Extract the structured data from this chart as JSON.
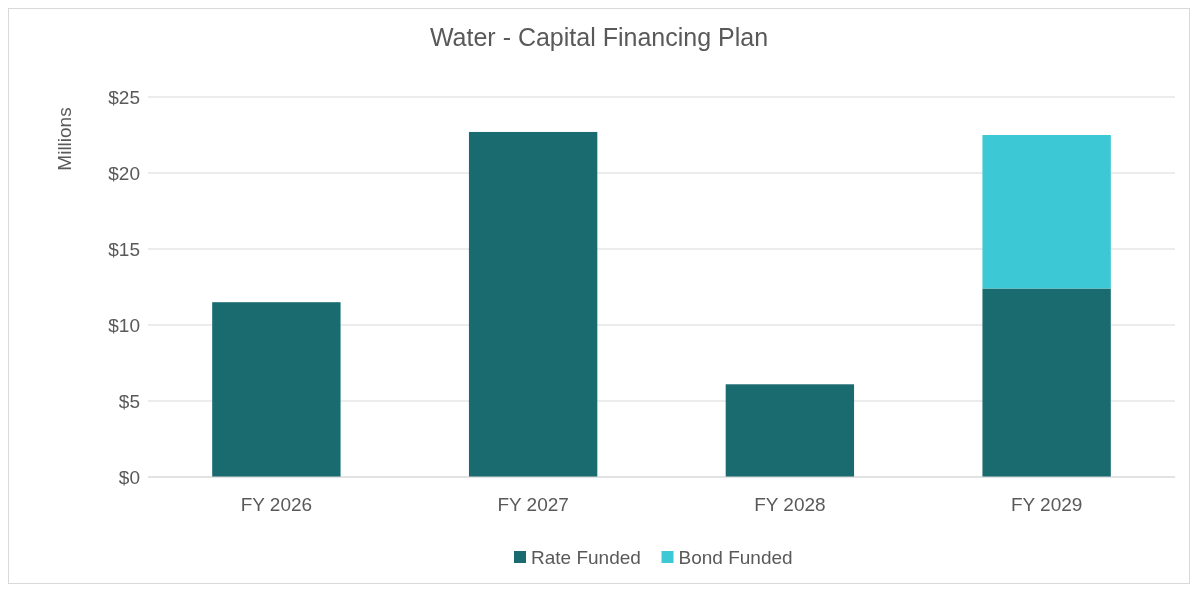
{
  "chart_data": {
    "type": "bar",
    "title": "Water - Capital Financing Plan",
    "ylabel": "Millions",
    "categories": [
      "FY 2026",
      "FY 2027",
      "FY 2028",
      "FY 2029"
    ],
    "stacked": true,
    "series": [
      {
        "name": "Rate Funded",
        "color": "#1a6b70",
        "values": [
          11.5,
          22.7,
          6.1,
          12.4
        ]
      },
      {
        "name": "Bond Funded",
        "color": "#3cc8d4",
        "values": [
          0,
          0,
          0,
          10.1
        ]
      }
    ],
    "ylim": [
      0,
      25
    ],
    "yticks": [
      {
        "value": 0,
        "label": "$0"
      },
      {
        "value": 5,
        "label": "$5"
      },
      {
        "value": 10,
        "label": "$10"
      },
      {
        "value": 15,
        "label": "$15"
      },
      {
        "value": 20,
        "label": "$20"
      },
      {
        "value": 25,
        "label": "$25"
      }
    ],
    "grid": "y",
    "legend": "bottom"
  }
}
